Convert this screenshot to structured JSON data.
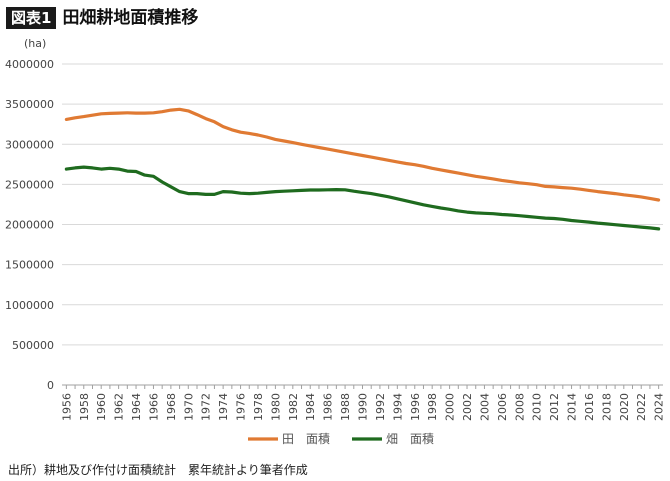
{
  "header": {
    "badge": "図表1",
    "title": "田畑耕地面積推移"
  },
  "source": "出所）耕地及び作付け面積統計　累年統計より筆者作成",
  "colors": {
    "paddy": "#e07a33",
    "field": "#1f6b1f",
    "grid": "#d9d9d9",
    "axis": "#a0a0a0"
  },
  "chart_data": {
    "type": "line",
    "unit_label": "(ha)",
    "xlabel": "",
    "ylabel": "",
    "ylim": [
      0,
      4000000
    ],
    "yticks": [
      0,
      500000,
      1000000,
      1500000,
      2000000,
      2500000,
      3000000,
      3500000,
      4000000
    ],
    "xticks": [
      1956,
      1958,
      1960,
      1962,
      1964,
      1966,
      1968,
      1970,
      1972,
      1974,
      1976,
      1978,
      1980,
      1982,
      1984,
      1986,
      1988,
      1990,
      1992,
      1994,
      1996,
      1998,
      2000,
      2002,
      2004,
      2006,
      2008,
      2010,
      2012,
      2014,
      2016,
      2018,
      2020,
      2022,
      2024
    ],
    "grid": "horizontal",
    "legend_position": "bottom",
    "x": [
      1956,
      1957,
      1958,
      1959,
      1960,
      1961,
      1962,
      1963,
      1964,
      1965,
      1966,
      1967,
      1968,
      1969,
      1970,
      1971,
      1972,
      1973,
      1974,
      1975,
      1976,
      1977,
      1978,
      1979,
      1980,
      1981,
      1982,
      1983,
      1984,
      1985,
      1986,
      1987,
      1988,
      1989,
      1990,
      1991,
      1992,
      1993,
      1994,
      1995,
      1996,
      1997,
      1998,
      1999,
      2000,
      2001,
      2002,
      2003,
      2004,
      2005,
      2006,
      2007,
      2008,
      2009,
      2010,
      2011,
      2012,
      2013,
      2014,
      2015,
      2016,
      2017,
      2018,
      2019,
      2020,
      2021,
      2022,
      2023,
      2024
    ],
    "series": [
      {
        "name": "田　面積",
        "color_key": "paddy",
        "values": [
          3310000,
          3330000,
          3345000,
          3362000,
          3380000,
          3385000,
          3388000,
          3392000,
          3388000,
          3388000,
          3392000,
          3405000,
          3425000,
          3435000,
          3415000,
          3370000,
          3320000,
          3280000,
          3220000,
          3180000,
          3150000,
          3135000,
          3115000,
          3090000,
          3060000,
          3040000,
          3020000,
          3000000,
          2980000,
          2960000,
          2940000,
          2920000,
          2900000,
          2880000,
          2860000,
          2840000,
          2820000,
          2800000,
          2780000,
          2760000,
          2745000,
          2725000,
          2700000,
          2680000,
          2660000,
          2640000,
          2620000,
          2600000,
          2585000,
          2568000,
          2550000,
          2535000,
          2520000,
          2508000,
          2496000,
          2475000,
          2468000,
          2460000,
          2452000,
          2440000,
          2425000,
          2410000,
          2398000,
          2385000,
          2370000,
          2358000,
          2344000,
          2325000,
          2305000
        ]
      },
      {
        "name": "畑　面積",
        "color_key": "field",
        "values": [
          2690000,
          2705000,
          2715000,
          2705000,
          2690000,
          2700000,
          2690000,
          2665000,
          2660000,
          2615000,
          2600000,
          2530000,
          2470000,
          2410000,
          2385000,
          2385000,
          2375000,
          2375000,
          2410000,
          2405000,
          2390000,
          2385000,
          2390000,
          2400000,
          2410000,
          2415000,
          2420000,
          2425000,
          2430000,
          2430000,
          2432000,
          2435000,
          2432000,
          2415000,
          2400000,
          2385000,
          2365000,
          2345000,
          2320000,
          2295000,
          2270000,
          2245000,
          2225000,
          2205000,
          2190000,
          2170000,
          2155000,
          2145000,
          2140000,
          2135000,
          2125000,
          2118000,
          2110000,
          2100000,
          2090000,
          2080000,
          2075000,
          2065000,
          2050000,
          2040000,
          2030000,
          2018000,
          2008000,
          1998000,
          1988000,
          1978000,
          1968000,
          1958000,
          1945000
        ]
      }
    ]
  }
}
